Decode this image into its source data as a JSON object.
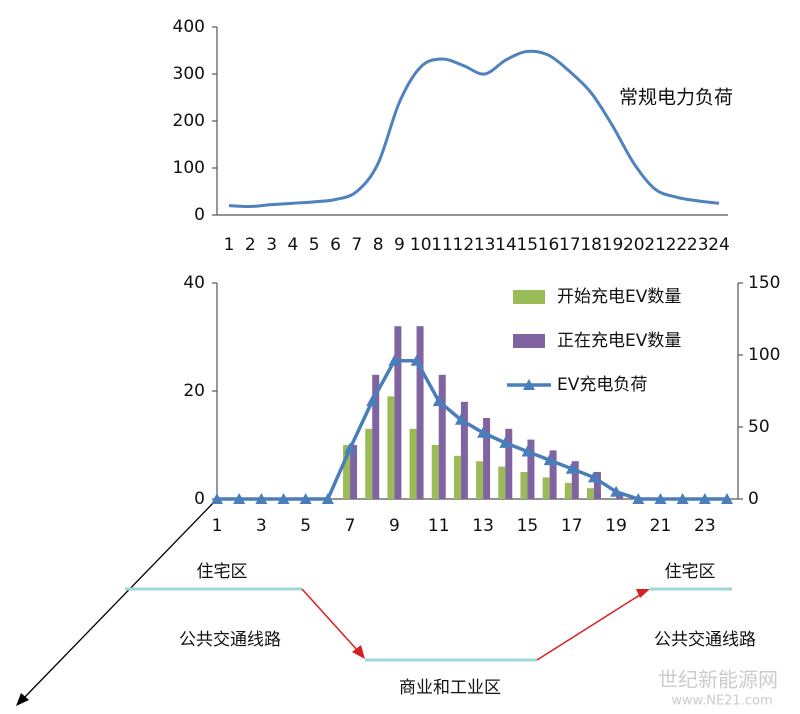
{
  "chart_data": [
    {
      "type": "line",
      "annotation": "常规电力负荷",
      "color": "#4f81bd",
      "categories": [
        "1",
        "2",
        "3",
        "4",
        "5",
        "6",
        "7",
        "8",
        "9",
        "10",
        "11",
        "12",
        "13",
        "14",
        "15",
        "16",
        "17",
        "18",
        "19",
        "20",
        "21",
        "22",
        "23",
        "24"
      ],
      "values": [
        20,
        18,
        22,
        25,
        28,
        33,
        50,
        110,
        240,
        315,
        332,
        318,
        300,
        330,
        348,
        340,
        305,
        260,
        190,
        110,
        55,
        38,
        30,
        25
      ],
      "ylim": [
        0,
        400
      ],
      "yticks": [
        0,
        100,
        200,
        300,
        400
      ]
    },
    {
      "type": "bar",
      "categories": [
        "1",
        null,
        "3",
        null,
        "5",
        null,
        "7",
        null,
        "9",
        null,
        "11",
        null,
        "13",
        null,
        "15",
        null,
        "17",
        null,
        "19",
        null,
        "21",
        null,
        "23",
        null
      ],
      "series": [
        {
          "name": "开始充电EV数量",
          "color": "#9bbb59",
          "values": [
            0,
            0,
            0,
            0,
            0,
            0,
            10,
            13,
            19,
            13,
            10,
            8,
            7,
            6,
            5,
            4,
            3,
            2,
            0,
            0,
            0,
            0,
            0,
            0
          ]
        },
        {
          "name": "正在充电EV数量",
          "color": "#8064a2",
          "values": [
            0,
            0,
            0,
            0,
            0,
            0,
            10,
            23,
            32,
            32,
            23,
            18,
            15,
            13,
            11,
            9,
            7,
            5,
            1,
            0,
            0,
            0,
            0,
            0
          ]
        },
        {
          "name": "EV充电负荷",
          "color": "#4a7ebb",
          "type": "line",
          "axis": "y2",
          "values": [
            0,
            0,
            0,
            0,
            0,
            0,
            35,
            68,
            96,
            96,
            68,
            55,
            46,
            39,
            33,
            27,
            21,
            15,
            5,
            0,
            0,
            0,
            0,
            0
          ]
        }
      ],
      "ylim": [
        0,
        40
      ],
      "yticks": [
        0,
        20,
        40
      ],
      "y2lim": [
        0,
        150
      ],
      "y2ticks": [
        0,
        50,
        100,
        150
      ]
    }
  ],
  "diagram": {
    "labels": [
      "住宅区",
      "公共交通线路",
      "商业和工业区",
      "住宅区",
      "公共交通线路"
    ],
    "watermark": [
      "世纪新能源网",
      "www.NE21.com"
    ]
  }
}
